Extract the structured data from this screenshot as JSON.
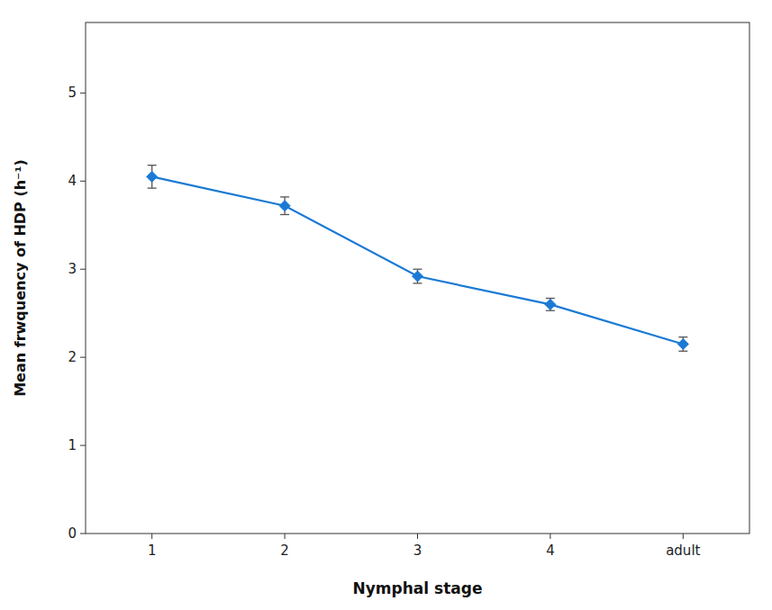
{
  "chart_data": {
    "type": "line",
    "categories": [
      "1",
      "2",
      "3",
      "4",
      "adult"
    ],
    "values": [
      4.05,
      3.72,
      2.92,
      2.6,
      2.15
    ],
    "errors": [
      0.13,
      0.1,
      0.08,
      0.07,
      0.08
    ],
    "x_label": "Nymphal stage",
    "y_label": "Mean frwquency of HDP (h⁻¹)",
    "ylim": [
      0,
      5.8
    ],
    "yticks": [
      0,
      1,
      2,
      3,
      4,
      5
    ],
    "color": "#1a7ad4",
    "marker": "diamond",
    "grid": false
  }
}
